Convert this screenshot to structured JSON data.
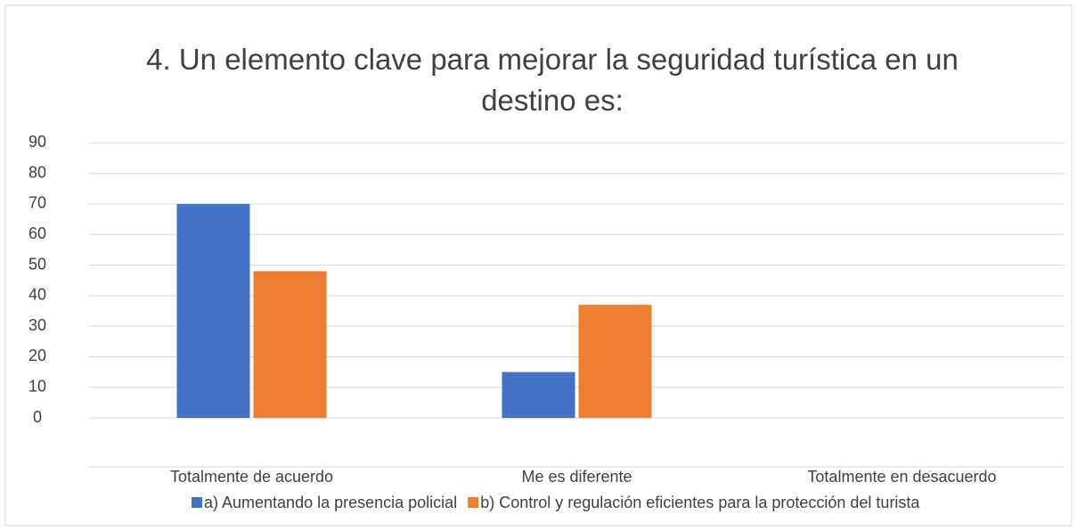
{
  "chart_data": {
    "type": "bar",
    "title": "4.  Un elemento clave para mejorar la seguridad turística en un destino es:",
    "categories": [
      "Totalmente de acuerdo",
      "Me es diferente",
      "Totalmente en desacuerdo"
    ],
    "series": [
      {
        "name": "a) Aumentando la presencia policial",
        "color": "#4472c4",
        "values": [
          70,
          15,
          0
        ]
      },
      {
        "name": "b) Control y regulación eficientes para la protección del turista",
        "color": "#ed7d31",
        "values": [
          48,
          37,
          0
        ]
      }
    ],
    "ylim": [
      -16,
      93
    ],
    "yticks": [
      0,
      10,
      20,
      30,
      40,
      50,
      60,
      70,
      80,
      90
    ],
    "grid": true,
    "legend": "bottom"
  }
}
